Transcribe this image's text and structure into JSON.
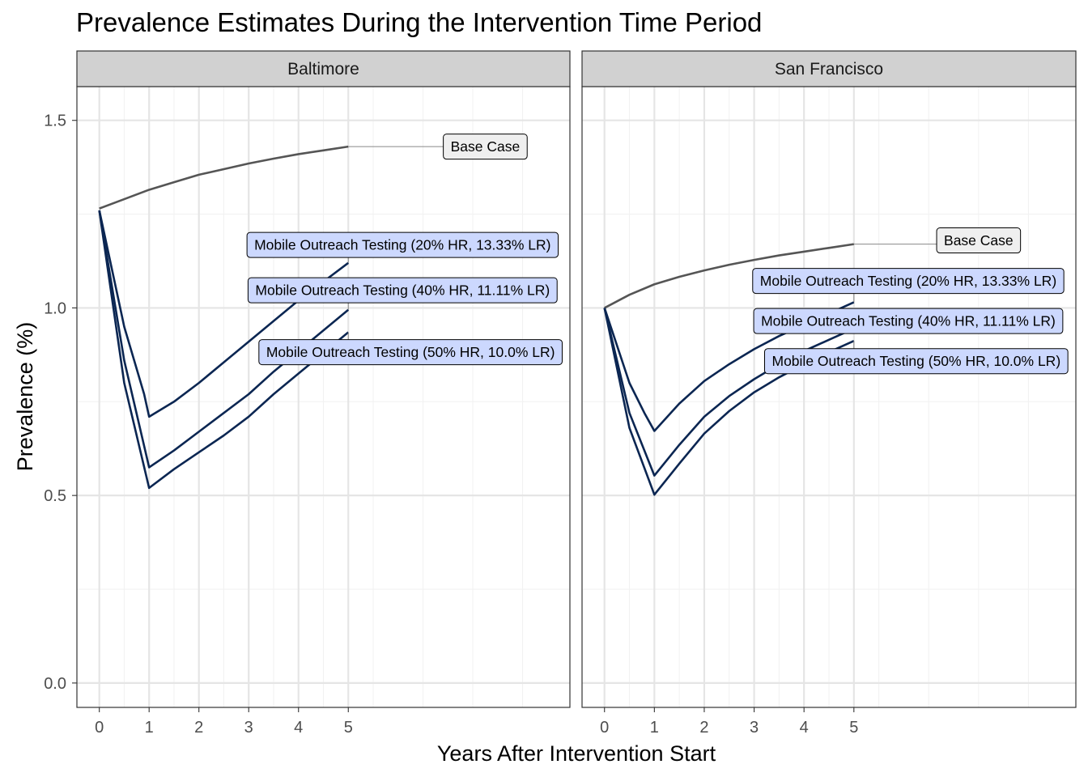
{
  "chart_data": {
    "type": "line",
    "title": "Prevalence Estimates During the Intervention Time Period",
    "xlabel": "Years After Intervention Start",
    "ylabel": "Prevalence (%)",
    "xlim": [
      -0.45,
      9.45
    ],
    "ylim": [
      -0.065,
      1.59
    ],
    "x_ticks": [
      0,
      1,
      2,
      3,
      4,
      5
    ],
    "x_tick_labels": [
      "0",
      "1",
      "2",
      "3",
      "4",
      "5"
    ],
    "y_ticks": [
      0,
      0.5,
      1,
      1.5
    ],
    "y_tick_labels": [
      "0.0",
      "0.5",
      "1.0",
      "1.5"
    ],
    "grid": true,
    "colors": {
      "base_line": "#555555",
      "intervention_line": "#0b2652",
      "base_label_fill": "#efefef",
      "intervention_label_fill": "#ccd8fe",
      "strip_fill": "#d1d1d1",
      "panel_border": "#333333",
      "grid_major": "#e5e5e5",
      "grid_minor": "#f2f2f2"
    },
    "panels": [
      {
        "name": "Baltimore",
        "series": [
          {
            "name": "Base Case",
            "kind": "base",
            "x": [
              0,
              0.5,
              1,
              1.5,
              2,
              2.5,
              3,
              3.5,
              4,
              4.5,
              5
            ],
            "y": [
              1.265,
              1.29,
              1.315,
              1.335,
              1.355,
              1.37,
              1.385,
              1.398,
              1.41,
              1.42,
              1.43
            ]
          },
          {
            "name": "Mobile Outreach Testing (20% HR, 13.33% LR)",
            "kind": "intervention",
            "x": [
              0,
              0.5,
              0.9,
              1,
              1.5,
              2,
              2.5,
              3,
              3.5,
              4,
              4.5,
              5
            ],
            "y": [
              1.26,
              0.95,
              0.77,
              0.71,
              0.75,
              0.8,
              0.855,
              0.91,
              0.965,
              1.02,
              1.07,
              1.12
            ]
          },
          {
            "name": "Mobile Outreach Testing (40% HR, 11.11% LR)",
            "kind": "intervention",
            "x": [
              0,
              0.5,
              1,
              1.5,
              2,
              2.5,
              3,
              3.5,
              4,
              4.5,
              5
            ],
            "y": [
              1.26,
              0.86,
              0.575,
              0.62,
              0.67,
              0.72,
              0.77,
              0.83,
              0.885,
              0.94,
              0.995
            ]
          },
          {
            "name": "Mobile Outreach Testing (50% HR, 10.0% LR)",
            "kind": "intervention",
            "x": [
              0,
              0.5,
              1,
              1.5,
              2,
              2.5,
              3,
              3.5,
              4,
              4.5,
              5
            ],
            "y": [
              1.26,
              0.8,
              0.52,
              0.57,
              0.615,
              0.66,
              0.71,
              0.77,
              0.825,
              0.88,
              0.935
            ]
          }
        ],
        "labels": [
          {
            "text": "Base Case",
            "kind": "base",
            "x": 7.75,
            "y": 1.43,
            "attach_x": 5,
            "attach_y": 1.43
          },
          {
            "text": "Mobile Outreach Testing (20% HR, 13.33% LR)",
            "kind": "intervention",
            "x": 6.09,
            "y": 1.168,
            "attach_x": 5,
            "attach_y": 1.12
          },
          {
            "text": "Mobile Outreach Testing (40% HR, 11.11% LR)",
            "kind": "intervention",
            "x": 6.09,
            "y": 1.047,
            "attach_x": 5,
            "attach_y": 0.995
          },
          {
            "text": "Mobile Outreach Testing (50% HR, 10.0% LR)",
            "kind": "intervention",
            "x": 6.25,
            "y": 0.882,
            "attach_x": 5,
            "attach_y": 0.935
          }
        ]
      },
      {
        "name": "San Francisco",
        "series": [
          {
            "name": "Base Case",
            "kind": "base",
            "x": [
              0,
              0.5,
              1,
              1.5,
              2,
              2.5,
              3,
              3.5,
              4,
              4.5,
              5
            ],
            "y": [
              1.0,
              1.035,
              1.063,
              1.083,
              1.1,
              1.115,
              1.128,
              1.14,
              1.15,
              1.16,
              1.17
            ]
          },
          {
            "name": "Mobile Outreach Testing (20% HR, 13.33% LR)",
            "kind": "intervention",
            "x": [
              0,
              0.5,
              0.8,
              1,
              1.5,
              2,
              2.5,
              3,
              3.5,
              4,
              4.5,
              5
            ],
            "y": [
              1.0,
              0.8,
              0.72,
              0.672,
              0.745,
              0.805,
              0.85,
              0.89,
              0.925,
              0.955,
              0.985,
              1.015
            ]
          },
          {
            "name": "Mobile Outreach Testing (40% HR, 11.11% LR)",
            "kind": "intervention",
            "x": [
              0,
              0.5,
              1,
              1.5,
              2,
              2.5,
              3,
              3.5,
              4,
              4.5,
              5
            ],
            "y": [
              1.0,
              0.72,
              0.553,
              0.635,
              0.71,
              0.765,
              0.81,
              0.85,
              0.885,
              0.915,
              0.945
            ]
          },
          {
            "name": "Mobile Outreach Testing (50% HR, 10.0% LR)",
            "kind": "intervention",
            "x": [
              0,
              0.5,
              1,
              1.5,
              2,
              2.5,
              3,
              3.5,
              4,
              4.5,
              5
            ],
            "y": [
              1.0,
              0.68,
              0.502,
              0.585,
              0.665,
              0.725,
              0.775,
              0.815,
              0.85,
              0.882,
              0.912
            ]
          }
        ],
        "labels": [
          {
            "text": "Base Case",
            "kind": "base",
            "x": 7.5,
            "y": 1.18,
            "attach_x": 5,
            "attach_y": 1.17
          },
          {
            "text": "Mobile Outreach Testing (20% HR, 13.33% LR)",
            "kind": "intervention",
            "x": 6.09,
            "y": 1.072,
            "attach_x": 5,
            "attach_y": 1.015
          },
          {
            "text": "Mobile Outreach Testing (40% HR, 11.11% LR)",
            "kind": "intervention",
            "x": 6.09,
            "y": 0.965,
            "attach_x": 5,
            "attach_y": 0.945
          },
          {
            "text": "Mobile Outreach Testing (50% HR, 10.0% LR)",
            "kind": "intervention",
            "x": 6.25,
            "y": 0.858,
            "attach_x": 5,
            "attach_y": 0.912
          }
        ]
      }
    ]
  }
}
